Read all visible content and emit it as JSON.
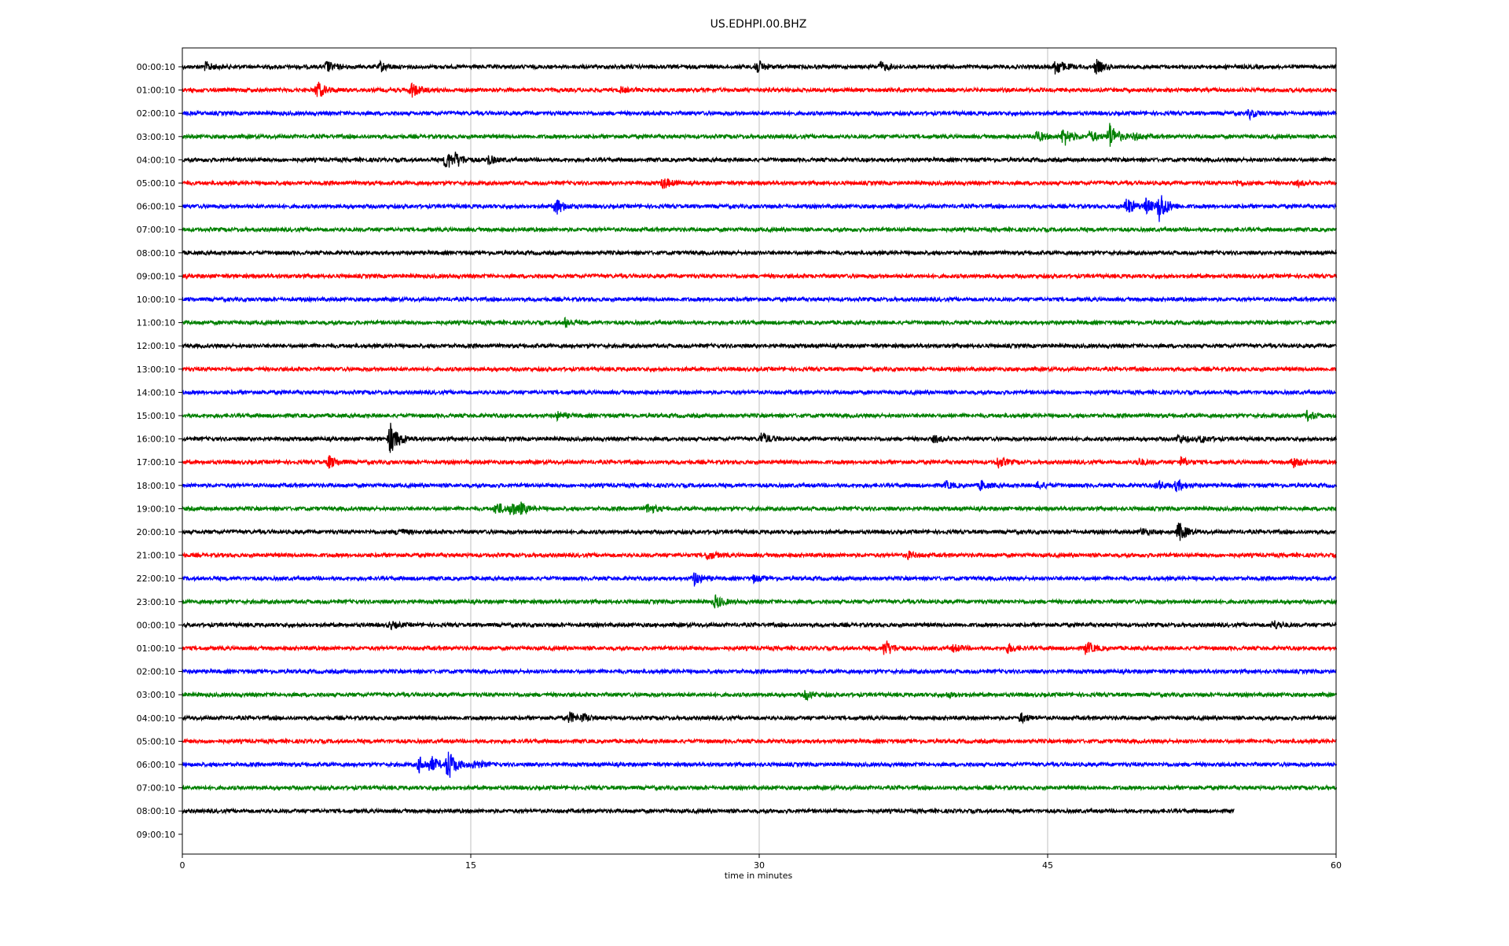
{
  "chart_data": {
    "type": "line",
    "title": "US.EDHPI.00.BHZ",
    "xlabel": "time in minutes",
    "ylabel": "",
    "xlim": [
      0,
      60
    ],
    "x_ticks": [
      "0",
      "15",
      "30",
      "45",
      "60"
    ],
    "x_tick_values": [
      0,
      15,
      30,
      45,
      60
    ],
    "grid": "vertical",
    "row_labels": [
      "00:00:10",
      "01:00:10",
      "02:00:10",
      "03:00:10",
      "04:00:10",
      "05:00:10",
      "06:00:10",
      "07:00:10",
      "08:00:10",
      "09:00:10",
      "10:00:10",
      "11:00:10",
      "12:00:10",
      "13:00:10",
      "14:00:10",
      "15:00:10",
      "16:00:10",
      "17:00:10",
      "18:00:10",
      "19:00:10",
      "20:00:10",
      "21:00:10",
      "22:00:10",
      "23:00:10",
      "00:00:10",
      "01:00:10",
      "02:00:10",
      "03:00:10",
      "04:00:10",
      "05:00:10",
      "06:00:10",
      "07:00:10",
      "08:00:10",
      "09:00:10"
    ],
    "colors": [
      "#000000",
      "#ff0000",
      "#0000ff",
      "#008000"
    ],
    "last_trace_end_minute": 54.7,
    "events": [
      {
        "row": 0,
        "t": 1.2,
        "a": 0.4
      },
      {
        "row": 0,
        "t": 7.5,
        "a": 0.5
      },
      {
        "row": 0,
        "t": 10.3,
        "a": 0.4
      },
      {
        "row": 0,
        "t": 29.8,
        "a": 0.7
      },
      {
        "row": 0,
        "t": 36.3,
        "a": 0.4
      },
      {
        "row": 0,
        "t": 45.4,
        "a": 0.8
      },
      {
        "row": 0,
        "t": 47.5,
        "a": 0.6
      },
      {
        "row": 1,
        "t": 7.0,
        "a": 0.8
      },
      {
        "row": 1,
        "t": 11.9,
        "a": 0.7
      },
      {
        "row": 1,
        "t": 22.8,
        "a": 0.2
      },
      {
        "row": 2,
        "t": 55.5,
        "a": 0.4
      },
      {
        "row": 3,
        "t": 44.4,
        "a": 0.5
      },
      {
        "row": 3,
        "t": 45.8,
        "a": 0.9
      },
      {
        "row": 3,
        "t": 47.2,
        "a": 0.5
      },
      {
        "row": 3,
        "t": 48.2,
        "a": 1.3
      },
      {
        "row": 3,
        "t": 49.5,
        "a": 0.3
      },
      {
        "row": 4,
        "t": 13.7,
        "a": 0.9
      },
      {
        "row": 4,
        "t": 14.2,
        "a": 0.7
      },
      {
        "row": 4,
        "t": 15.9,
        "a": 0.4
      },
      {
        "row": 5,
        "t": 25.0,
        "a": 0.5
      },
      {
        "row": 5,
        "t": 54.8,
        "a": 0.2
      },
      {
        "row": 5,
        "t": 58.0,
        "a": 0.2
      },
      {
        "row": 6,
        "t": 19.4,
        "a": 0.8
      },
      {
        "row": 6,
        "t": 49.1,
        "a": 0.8
      },
      {
        "row": 6,
        "t": 50.1,
        "a": 0.7
      },
      {
        "row": 6,
        "t": 50.8,
        "a": 1.5
      },
      {
        "row": 11,
        "t": 19.9,
        "a": 0.4
      },
      {
        "row": 15,
        "t": 19.5,
        "a": 0.3
      },
      {
        "row": 15,
        "t": 58.5,
        "a": 0.4
      },
      {
        "row": 16,
        "t": 10.8,
        "a": 1.5
      },
      {
        "row": 16,
        "t": 11.3,
        "a": 0.5
      },
      {
        "row": 16,
        "t": 30.1,
        "a": 0.6
      },
      {
        "row": 16,
        "t": 39.1,
        "a": 0.3
      },
      {
        "row": 16,
        "t": 51.8,
        "a": 0.4
      },
      {
        "row": 16,
        "t": 53.0,
        "a": 0.3
      },
      {
        "row": 17,
        "t": 7.6,
        "a": 0.6
      },
      {
        "row": 17,
        "t": 42.4,
        "a": 0.5
      },
      {
        "row": 17,
        "t": 51.9,
        "a": 0.4
      },
      {
        "row": 17,
        "t": 57.7,
        "a": 0.5
      },
      {
        "row": 17,
        "t": 49.7,
        "a": 0.3
      },
      {
        "row": 18,
        "t": 39.7,
        "a": 0.3
      },
      {
        "row": 18,
        "t": 41.5,
        "a": 0.4
      },
      {
        "row": 18,
        "t": 44.5,
        "a": 0.3
      },
      {
        "row": 18,
        "t": 50.7,
        "a": 0.4
      },
      {
        "row": 18,
        "t": 51.7,
        "a": 0.5
      },
      {
        "row": 19,
        "t": 16.3,
        "a": 0.6
      },
      {
        "row": 19,
        "t": 17.1,
        "a": 0.7
      },
      {
        "row": 19,
        "t": 17.6,
        "a": 0.5
      },
      {
        "row": 19,
        "t": 24.2,
        "a": 0.5
      },
      {
        "row": 20,
        "t": 11.2,
        "a": 0.3
      },
      {
        "row": 20,
        "t": 49.9,
        "a": 0.3
      },
      {
        "row": 20,
        "t": 51.8,
        "a": 0.9
      },
      {
        "row": 21,
        "t": 27.3,
        "a": 0.4
      },
      {
        "row": 21,
        "t": 37.7,
        "a": 0.3
      },
      {
        "row": 22,
        "t": 26.6,
        "a": 0.6
      },
      {
        "row": 22,
        "t": 29.7,
        "a": 0.3
      },
      {
        "row": 23,
        "t": 27.7,
        "a": 0.6
      },
      {
        "row": 24,
        "t": 10.8,
        "a": 0.3
      },
      {
        "row": 24,
        "t": 56.7,
        "a": 0.4
      },
      {
        "row": 25,
        "t": 36.5,
        "a": 0.8
      },
      {
        "row": 25,
        "t": 42.9,
        "a": 0.4
      },
      {
        "row": 25,
        "t": 47.0,
        "a": 0.6
      },
      {
        "row": 25,
        "t": 40.1,
        "a": 0.3
      },
      {
        "row": 27,
        "t": 32.4,
        "a": 0.4
      },
      {
        "row": 27,
        "t": 39.8,
        "a": 0.2
      },
      {
        "row": 28,
        "t": 20.1,
        "a": 0.5
      },
      {
        "row": 28,
        "t": 20.8,
        "a": 0.4
      },
      {
        "row": 28,
        "t": 43.6,
        "a": 0.4
      },
      {
        "row": 30,
        "t": 12.3,
        "a": 0.7
      },
      {
        "row": 30,
        "t": 12.9,
        "a": 0.8
      },
      {
        "row": 30,
        "t": 13.8,
        "a": 1.5
      },
      {
        "row": 30,
        "t": 15.2,
        "a": 0.4
      }
    ]
  }
}
